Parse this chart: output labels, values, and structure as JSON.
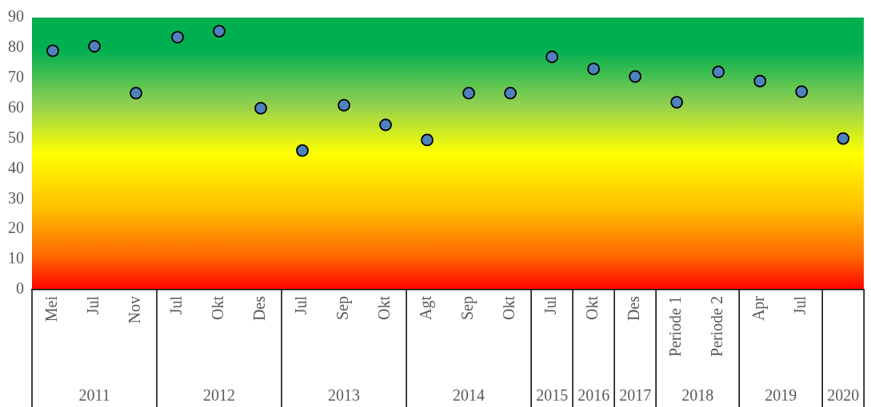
{
  "chart_data": {
    "type": "scatter",
    "categories": [
      "Mei",
      "Jul",
      "Nov",
      "Jul",
      "Okt",
      "Des",
      "Jul",
      "Sep",
      "Okt",
      "Agt",
      "Sep",
      "Okt",
      "Jul",
      "Okt",
      "Des",
      "Periode 1",
      "Periode 2",
      "Apr",
      "Jul",
      null
    ],
    "series": [
      {
        "color": "#4f81bd",
        "values": [
          79,
          80.5,
          65,
          83.5,
          85.5,
          60,
          46,
          61,
          54.5,
          49.5,
          65,
          65,
          77,
          73,
          70.5,
          62,
          72,
          69,
          65.5,
          50
        ]
      }
    ],
    "ylim": [
      0,
      90
    ],
    "yticks": [
      0,
      10,
      20,
      30,
      40,
      50,
      60,
      70,
      80,
      90
    ],
    "marker": "circle",
    "grid": false,
    "legend": false,
    "annotations": [
      "2011",
      "2012",
      "2013",
      "2014",
      "2015",
      "2016",
      "2017",
      "2018",
      "2019",
      "2020"
    ]
  }
}
